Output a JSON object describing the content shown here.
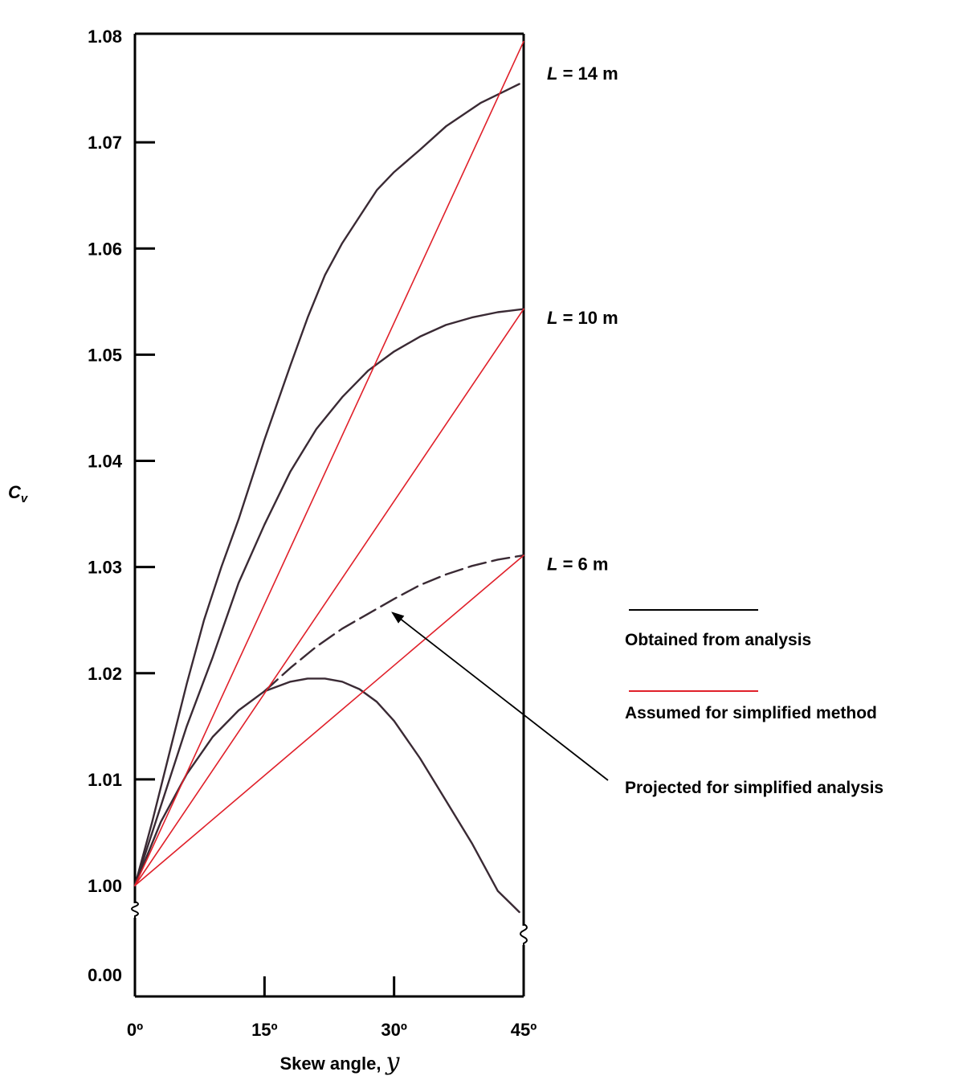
{
  "chart_data": {
    "type": "line",
    "ylabel": "C",
    "ylabel_sub": "v",
    "xlabel": "Skew angle, ",
    "xlabel_symbol": "y",
    "x_ticks": [
      "0º",
      "15º",
      "30º",
      "45º"
    ],
    "y_ticks": [
      "1.08",
      "1.07",
      "1.06",
      "1.05",
      "1.04",
      "1.03",
      "1.02",
      "1.01",
      "1.00",
      "0.00"
    ],
    "xlim": [
      0,
      45
    ],
    "ylim": [
      1.0,
      1.08
    ],
    "axis_break": true,
    "colors": {
      "analysis": "#3a2a34",
      "simplified": "#e0202a",
      "frame": "#000000"
    },
    "series": [
      {
        "name": "L = 14 m",
        "group": "analysis",
        "style": "solid",
        "x": [
          0,
          2,
          4,
          6,
          8,
          10,
          12,
          15,
          18,
          20,
          22,
          24,
          26,
          28,
          30,
          33,
          36,
          40,
          43,
          44.5
        ],
        "y": [
          1.0,
          1.006,
          1.0125,
          1.019,
          1.025,
          1.03,
          1.0345,
          1.042,
          1.049,
          1.0535,
          1.0575,
          1.0605,
          1.063,
          1.0655,
          1.0672,
          1.0693,
          1.0715,
          1.0737,
          1.0749,
          1.0755
        ]
      },
      {
        "name": "L = 10 m",
        "group": "analysis",
        "style": "solid",
        "x": [
          0,
          3,
          6,
          9,
          12,
          15,
          18,
          21,
          24,
          27,
          30,
          33,
          36,
          39,
          42,
          45
        ],
        "y": [
          1.0,
          1.0075,
          1.015,
          1.0215,
          1.0285,
          1.034,
          1.039,
          1.043,
          1.046,
          1.0485,
          1.0503,
          1.0517,
          1.0528,
          1.0535,
          1.054,
          1.0543
        ]
      },
      {
        "name": "L = 6 m",
        "group": "analysis",
        "style": "solid",
        "x": [
          0,
          3,
          6,
          9,
          12,
          15,
          18,
          20,
          22,
          24,
          26,
          28,
          30,
          33,
          36,
          39,
          42,
          44.5
        ],
        "y": [
          1.0,
          1.006,
          1.0105,
          1.014,
          1.0165,
          1.0183,
          1.0192,
          1.0195,
          1.0195,
          1.0192,
          1.0185,
          1.0173,
          1.0155,
          1.012,
          1.008,
          1.004,
          0.9995,
          0.9975
        ]
      },
      {
        "name": "L = 6 m projected",
        "group": "projected",
        "style": "dashed",
        "x": [
          15,
          18,
          21,
          24,
          27,
          30,
          33,
          36,
          39,
          42,
          45
        ],
        "y": [
          1.0183,
          1.0205,
          1.0225,
          1.0242,
          1.0256,
          1.027,
          1.0283,
          1.0293,
          1.0301,
          1.0307,
          1.0311
        ]
      },
      {
        "name": "L = 14 m simplified",
        "group": "simplified",
        "style": "solid",
        "x": [
          0,
          45
        ],
        "y": [
          1.0,
          1.0795
        ]
      },
      {
        "name": "L = 10 m simplified",
        "group": "simplified",
        "style": "solid",
        "x": [
          0,
          45
        ],
        "y": [
          1.0,
          1.0543
        ]
      },
      {
        "name": "L = 6 m simplified",
        "group": "simplified",
        "style": "solid",
        "x": [
          0,
          45
        ],
        "y": [
          1.0,
          1.0311
        ]
      }
    ],
    "curve_labels": [
      {
        "prefix": "L",
        "text": " = 14 m",
        "y": 1.0765
      },
      {
        "prefix": "L",
        "text": " = 10 m",
        "y": 1.0535
      },
      {
        "prefix": "L",
        "text": " = 6 m",
        "y": 1.0303
      }
    ],
    "legend": [
      {
        "label": "Obtained from analysis",
        "color": "#000000"
      },
      {
        "label": "Assumed for simplified method",
        "color": "#e0202a"
      },
      {
        "label": "Projected for simplified analysis",
        "arrow_to": {
          "x": 30,
          "y": 1.026
        }
      }
    ]
  }
}
